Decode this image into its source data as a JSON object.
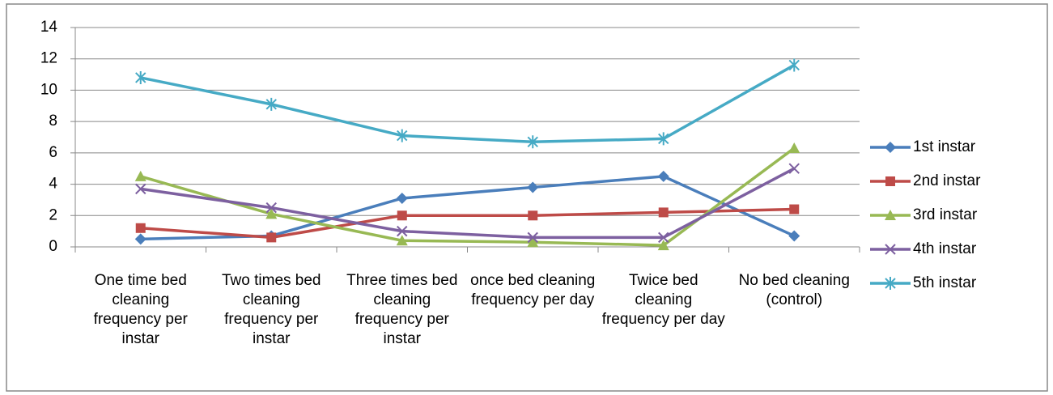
{
  "chart_data": {
    "type": "line",
    "categories": [
      "One time bed cleaning frequency per instar",
      "Two times bed cleaning frequency per instar",
      "Three times bed cleaning frequency per instar",
      "once bed cleaning frequency per day",
      "Twice bed cleaning frequency per day",
      "No bed cleaning (control)"
    ],
    "series": [
      {
        "name": "1st instar",
        "color": "#4a7ebb",
        "marker": "diamond",
        "values": [
          0.5,
          0.7,
          3.1,
          3.8,
          4.5,
          0.7
        ]
      },
      {
        "name": "2nd instar",
        "color": "#be4b48",
        "marker": "square",
        "values": [
          1.2,
          0.6,
          2.0,
          2.0,
          2.2,
          2.4
        ]
      },
      {
        "name": "3rd instar",
        "color": "#98b954",
        "marker": "triangle",
        "values": [
          4.5,
          2.1,
          0.4,
          0.3,
          0.1,
          6.3
        ]
      },
      {
        "name": "4th instar",
        "color": "#7d60a0",
        "marker": "x",
        "values": [
          3.7,
          2.5,
          1.0,
          0.6,
          0.6,
          5.0
        ]
      },
      {
        "name": "5th instar",
        "color": "#46aac5",
        "marker": "star",
        "values": [
          10.8,
          9.1,
          7.1,
          6.7,
          6.9,
          11.6
        ]
      }
    ],
    "ylim": [
      0,
      14
    ],
    "yticks": [
      0,
      2,
      4,
      6,
      8,
      10,
      12,
      14
    ],
    "grid": true,
    "legend": "right"
  }
}
